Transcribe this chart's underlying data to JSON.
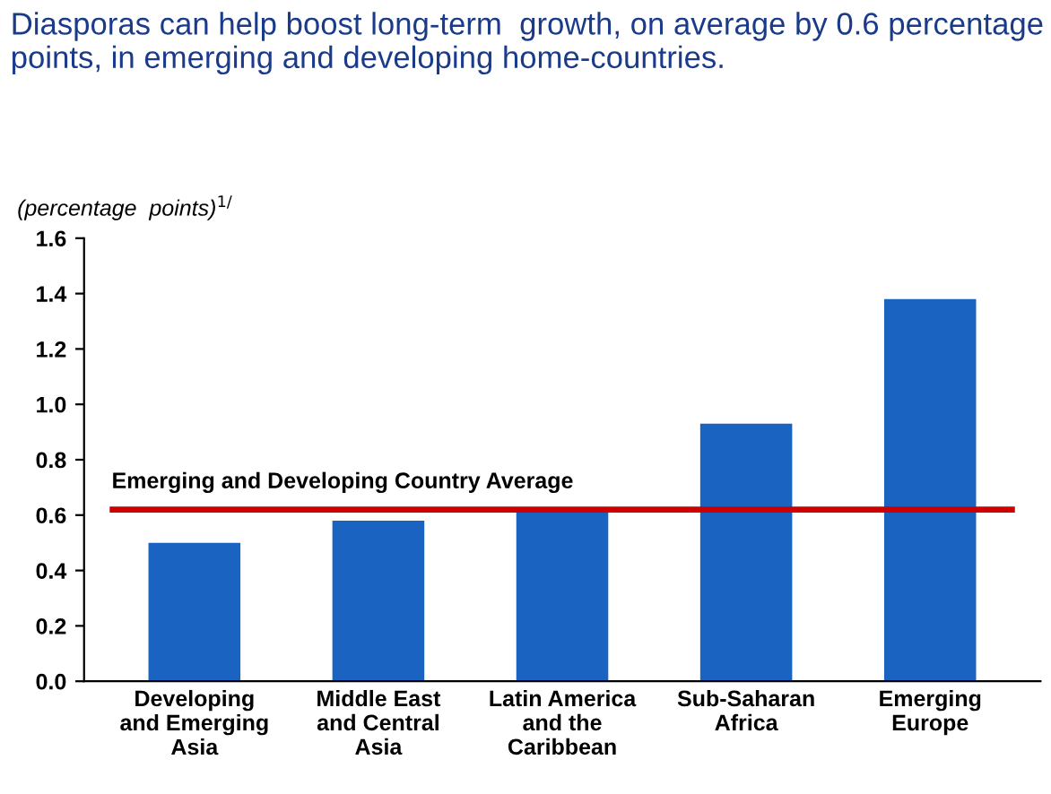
{
  "chart_data": {
    "type": "bar",
    "title": "Diasporas can help boost long-term  growth, on average by 0.6 percentage points, in emerging and developing home-countries.",
    "ylabel": "(percentage  points)$^{1/}$",
    "categories": [
      "Developing\nand Emerging\nAsia",
      "Middle East\nand Central\nAsia",
      "Latin America\nand the\nCaribbean",
      "Sub-Saharan\nAfrica",
      "Emerging\nEurope"
    ],
    "values": [
      0.5,
      0.58,
      0.62,
      0.93,
      1.38
    ],
    "color": "#1a63c0",
    "ylim": [
      0,
      1.6
    ],
    "yticks": [
      {
        "value": 0,
        "label": "0.0"
      },
      {
        "value": 0.2,
        "label": "0.2"
      },
      {
        "value": 0.4,
        "label": "0.4"
      },
      {
        "value": 0.6,
        "label": "0.6"
      },
      {
        "value": 0.8,
        "label": "0.8"
      },
      {
        "value": 1.0,
        "label": "1.0"
      },
      {
        "value": 1.2,
        "label": "1.2"
      },
      {
        "value": 1.4,
        "label": "1.4"
      },
      {
        "value": 1.6,
        "label": "1.6"
      }
    ],
    "ref_lines": [
      {
        "axis": "y",
        "value": 0.62,
        "label": "Emerging and Developing Country Average",
        "color": "#cc0000"
      }
    ],
    "grid": false,
    "legend": false
  }
}
